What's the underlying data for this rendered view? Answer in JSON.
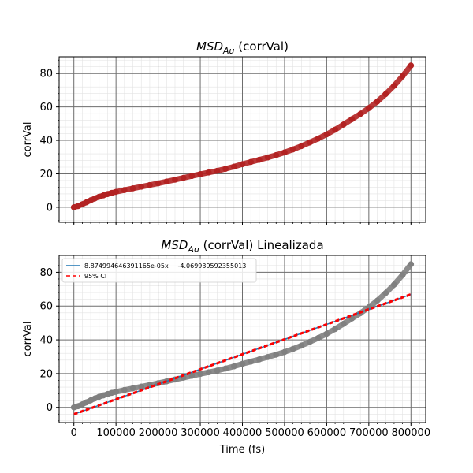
{
  "chart_data": [
    {
      "type": "scatter",
      "title": "MSD_Au (corrVal)",
      "title_parts": {
        "sym": "MSD",
        "sub": "Au",
        "rest": " (corrVal)"
      },
      "xlabel": "",
      "ylabel": "corrVal",
      "xlim": [
        -35000,
        835000
      ],
      "ylim": [
        -9,
        90
      ],
      "x_ticks": [
        0,
        100000,
        200000,
        300000,
        400000,
        500000,
        600000,
        700000,
        800000
      ],
      "y_ticks": [
        0,
        20,
        40,
        60,
        80
      ],
      "y_tick_labels": [
        "0",
        "20",
        "40",
        "60",
        "80"
      ],
      "x_tick_labels_visible": false,
      "grid": true,
      "minor_grid": true,
      "series": [
        {
          "color": "#b22222",
          "marker": "circle",
          "x": [
            0,
            10000,
            20000,
            30000,
            40000,
            50000,
            60000,
            70000,
            80000,
            90000,
            100000,
            120000,
            140000,
            160000,
            180000,
            200000,
            220000,
            240000,
            260000,
            280000,
            300000,
            320000,
            340000,
            360000,
            380000,
            400000,
            420000,
            440000,
            460000,
            480000,
            500000,
            520000,
            540000,
            560000,
            580000,
            600000,
            620000,
            640000,
            660000,
            680000,
            700000,
            720000,
            740000,
            760000,
            780000,
            800000
          ],
          "y": [
            0,
            0.7,
            1.8,
            3.0,
            4.2,
            5.3,
            6.3,
            7.1,
            7.9,
            8.6,
            9.2,
            10.3,
            11.3,
            12.3,
            13.3,
            14.3,
            15.4,
            16.5,
            17.6,
            18.7,
            19.8,
            20.8,
            21.8,
            23.0,
            24.3,
            25.8,
            27.1,
            28.4,
            29.8,
            31.2,
            32.8,
            34.6,
            36.6,
            38.8,
            41.1,
            43.6,
            46.4,
            49.5,
            52.7,
            55.8,
            59.3,
            63.2,
            67.7,
            72.7,
            78.4,
            84.8
          ]
        }
      ]
    },
    {
      "type": "scatter",
      "title": "MSD_Au (corrVal) Linealizada",
      "title_parts": {
        "sym": "MSD",
        "sub": "Au",
        "rest": " (corrVal) Linealizada"
      },
      "xlabel": "Time (fs)",
      "ylabel": "corrVal",
      "xlim": [
        -35000,
        835000
      ],
      "ylim": [
        -9,
        90
      ],
      "x_ticks": [
        0,
        100000,
        200000,
        300000,
        400000,
        500000,
        600000,
        700000,
        800000
      ],
      "x_tick_labels": [
        "0",
        "100000",
        "200000",
        "300000",
        "400000",
        "500000",
        "600000",
        "700000",
        "800000"
      ],
      "y_ticks": [
        0,
        20,
        40,
        60,
        80
      ],
      "y_tick_labels": [
        "0",
        "20",
        "40",
        "60",
        "80"
      ],
      "grid": true,
      "minor_grid": true,
      "legend_position": "top-left",
      "legend": [
        {
          "label": "8.874994646391165e-05x + -4.069939592355013",
          "color": "#1f77b4",
          "style": "solid"
        },
        {
          "label": "95% CI",
          "color": "#ff0000",
          "style": "dashed"
        }
      ],
      "fit": {
        "slope": 8.874994646391165e-05,
        "intercept": -4.069939592355013
      },
      "series": [
        {
          "color": "#808080",
          "marker": "circle",
          "x": [
            0,
            10000,
            20000,
            30000,
            40000,
            50000,
            60000,
            70000,
            80000,
            90000,
            100000,
            120000,
            140000,
            160000,
            180000,
            200000,
            220000,
            240000,
            260000,
            280000,
            300000,
            320000,
            340000,
            360000,
            380000,
            400000,
            420000,
            440000,
            460000,
            480000,
            500000,
            520000,
            540000,
            560000,
            580000,
            600000,
            620000,
            640000,
            660000,
            680000,
            700000,
            720000,
            740000,
            760000,
            780000,
            800000
          ],
          "y": [
            0,
            0.7,
            1.8,
            3.0,
            4.2,
            5.3,
            6.3,
            7.1,
            7.9,
            8.6,
            9.2,
            10.3,
            11.3,
            12.3,
            13.3,
            14.3,
            15.4,
            16.5,
            17.6,
            18.7,
            19.8,
            20.8,
            21.8,
            23.0,
            24.3,
            25.8,
            27.1,
            28.4,
            29.8,
            31.2,
            32.8,
            34.6,
            36.6,
            38.8,
            41.1,
            43.6,
            46.4,
            49.5,
            52.7,
            55.8,
            59.3,
            63.2,
            67.7,
            72.7,
            78.4,
            84.8
          ]
        }
      ]
    }
  ]
}
